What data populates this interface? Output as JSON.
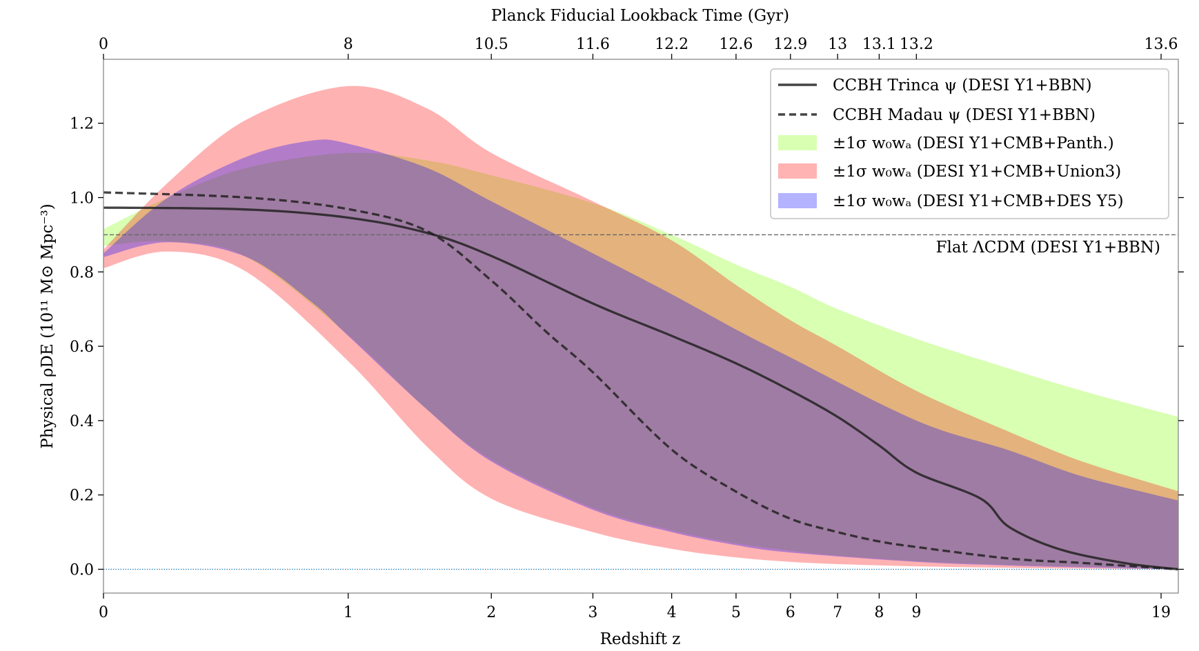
{
  "chart_data": {
    "type": "area",
    "xlabel": "Redshift z",
    "top_xlabel": "Planck Fiducial Lookback Time (Gyr)",
    "ylabel": "Physical ρDE (10¹¹ M⊙ Mpc⁻³)",
    "x_scale": "log(1+z)",
    "xlim": [
      0,
      20
    ],
    "ylim": [
      -0.064,
      1.372
    ],
    "grid": false,
    "legend_position": "top-right",
    "x_ticks": [
      0,
      1,
      2,
      3,
      4,
      5,
      6,
      7,
      8,
      9,
      19
    ],
    "x_tick_labels": [
      "0",
      "1",
      "2",
      "3",
      "4",
      "5",
      "6",
      "7",
      "8",
      "9",
      "19"
    ],
    "top_tick_labels": [
      "0",
      "8",
      "10.5",
      "11.6",
      "12.2",
      "12.6",
      "12.9",
      "13",
      "13.1",
      "13.2",
      "13.6"
    ],
    "y_ticks": [
      0.0,
      0.2,
      0.4,
      0.6,
      0.8,
      1.0,
      1.2
    ],
    "y_tick_labels": [
      "0.0",
      "0.2",
      "0.4",
      "0.6",
      "0.8",
      "1.0",
      "1.2"
    ],
    "bands": [
      {
        "name": "±1σ w₀wₐ (DESI Y1+CMB+Panth.)",
        "color": "#7fff00",
        "opacity": 0.3,
        "z": [
          0,
          0.2,
          0.5,
          1,
          1.5,
          2,
          3,
          4,
          5,
          6,
          7,
          9,
          12,
          15,
          20
        ],
        "upper": [
          0.915,
          1.0,
          1.08,
          1.12,
          1.1,
          1.06,
          0.985,
          0.9,
          0.82,
          0.76,
          0.7,
          0.62,
          0.54,
          0.48,
          0.41
        ],
        "lower": [
          0.87,
          0.882,
          0.84,
          0.63,
          0.43,
          0.295,
          0.165,
          0.105,
          0.07,
          0.05,
          0.037,
          0.022,
          0.012,
          0.007,
          0.003
        ]
      },
      {
        "name": "±1σ w₀wₐ (DESI Y1+CMB+Union3)",
        "color": "#ff0000",
        "opacity": 0.3,
        "z": [
          0,
          0.2,
          0.5,
          1,
          1.5,
          2,
          3,
          4,
          5,
          6,
          7,
          9,
          12,
          15,
          20
        ],
        "upper": [
          0.86,
          1.04,
          1.21,
          1.3,
          1.24,
          1.12,
          0.99,
          0.885,
          0.765,
          0.67,
          0.6,
          0.48,
          0.37,
          0.29,
          0.21
        ],
        "lower": [
          0.81,
          0.855,
          0.8,
          0.56,
          0.33,
          0.19,
          0.1,
          0.055,
          0.032,
          0.02,
          0.014,
          0.008,
          0.004,
          0.002,
          0.0
        ]
      },
      {
        "name": "±1σ w₀wₐ (DESI Y1+CMB+DES Y5)",
        "color": "#0000ff",
        "opacity": 0.3,
        "z": [
          0,
          0.2,
          0.5,
          0.8,
          1,
          1.5,
          2,
          3,
          4,
          5,
          6,
          9,
          12,
          15,
          20
        ],
        "upper": [
          0.85,
          1.0,
          1.11,
          1.153,
          1.145,
          1.08,
          0.99,
          0.85,
          0.74,
          0.645,
          0.57,
          0.4,
          0.32,
          0.25,
          0.185
        ],
        "lower": [
          0.84,
          0.88,
          0.84,
          0.72,
          0.628,
          0.43,
          0.29,
          0.16,
          0.1,
          0.065,
          0.045,
          0.02,
          0.01,
          0.005,
          0.0
        ]
      }
    ],
    "series": [
      {
        "name": "CCBH Trinca ψ (DESI Y1+BBN)",
        "style": "solid",
        "color": "#222222",
        "z": [
          0,
          0.5,
          1,
          1.5,
          2,
          3,
          4,
          5,
          6,
          7,
          8,
          9,
          11,
          12,
          14,
          17,
          20
        ],
        "values": [
          0.973,
          0.968,
          0.946,
          0.905,
          0.843,
          0.715,
          0.628,
          0.554,
          0.481,
          0.41,
          0.333,
          0.26,
          0.19,
          0.114,
          0.054,
          0.017,
          0.0
        ]
      },
      {
        "name": "CCBH Madau ψ (DESI Y1+BBN)",
        "style": "dashed",
        "color": "#222222",
        "z": [
          0,
          0.5,
          1,
          1.5,
          2,
          2.5,
          3,
          4,
          5,
          6,
          7,
          8,
          9,
          12,
          15,
          20
        ],
        "values": [
          1.014,
          1.0,
          0.969,
          0.91,
          0.777,
          0.64,
          0.53,
          0.322,
          0.209,
          0.136,
          0.1,
          0.075,
          0.06,
          0.029,
          0.017,
          0.0
        ]
      }
    ],
    "reference_lines": [
      {
        "name": "Flat ΛCDM (DESI Y1+BBN)",
        "value": 0.9,
        "style": "dashed",
        "color": "#666666"
      },
      {
        "name": "",
        "value": 0.0,
        "style": "dotted",
        "color": "#1f77b4"
      }
    ],
    "legend": [
      {
        "label": "CCBH Trinca ψ (DESI Y1+BBN)",
        "kind": "solid"
      },
      {
        "label": "CCBH Madau ψ (DESI Y1+BBN)",
        "kind": "dashed"
      },
      {
        "label": "±1σ w₀wₐ (DESI Y1+CMB+Panth.)",
        "kind": "patch",
        "color": "#d9ffb3"
      },
      {
        "label": "±1σ w₀wₐ (DESI Y1+CMB+Union3)",
        "kind": "patch",
        "color": "#ffb3b3"
      },
      {
        "label": "±1σ w₀wₐ (DESI Y1+CMB+DES Y5)",
        "kind": "patch",
        "color": "#b3b3ff"
      }
    ]
  }
}
